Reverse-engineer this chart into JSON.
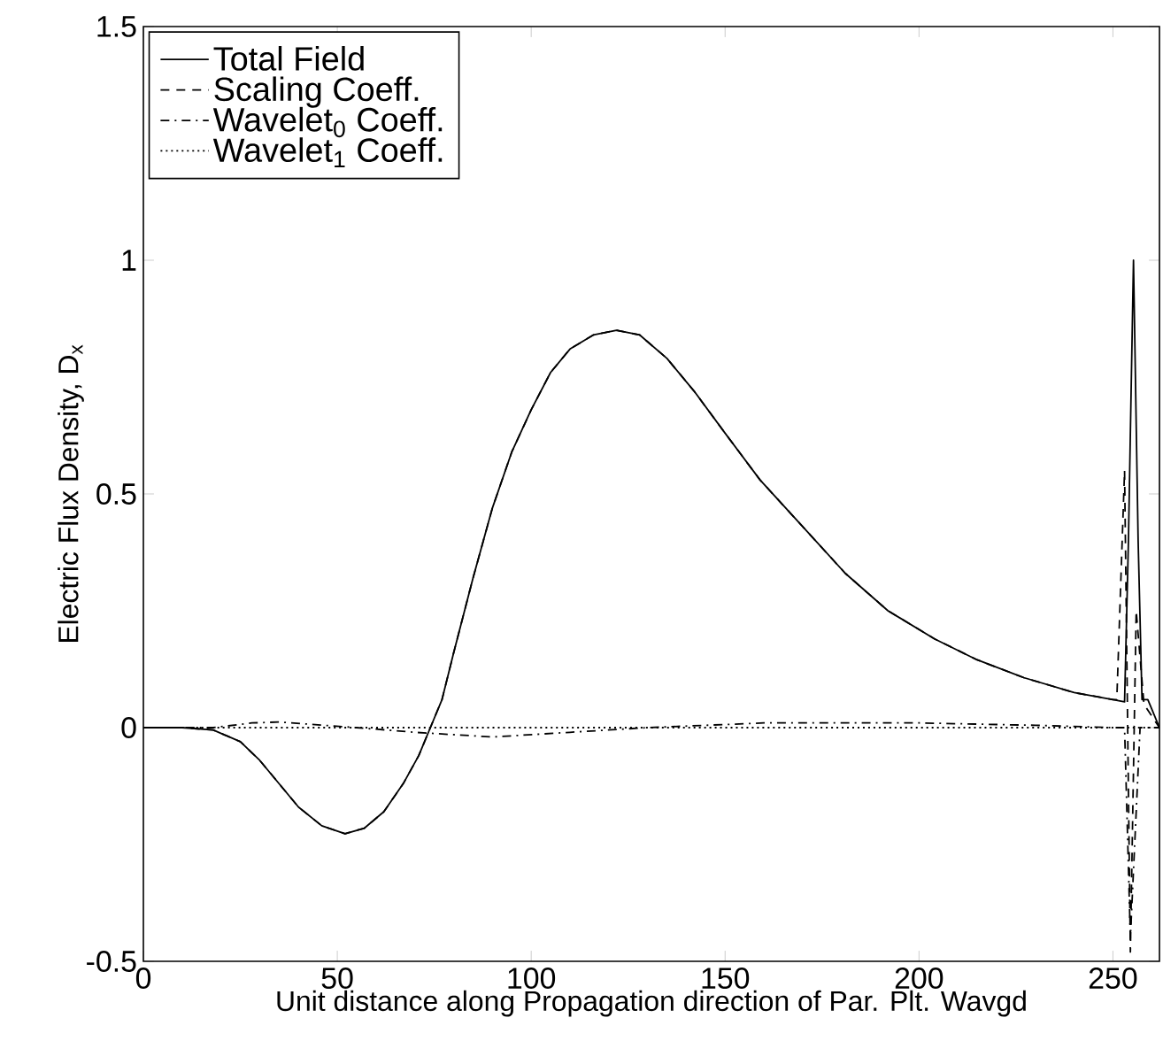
{
  "chart_data": {
    "type": "line",
    "xlabel": "Unit distance along Propagation direction of Par. Plt. Wavgd",
    "ylabel": "Electric Flux Density, D$_{x}$",
    "xlim": [
      0,
      262
    ],
    "ylim": [
      -0.5,
      1.5
    ],
    "xticks": [
      0,
      50,
      100,
      150,
      200,
      250
    ],
    "yticks": [
      -0.5,
      0,
      0.5,
      1,
      1.5
    ],
    "legend": "top left",
    "grid": false,
    "series": [
      {
        "name": "Total Field",
        "color": "#000000",
        "line_style": "solid",
        "x": [
          0,
          10,
          18,
          25,
          30,
          35,
          40,
          46,
          52,
          57,
          62,
          67,
          71,
          74,
          77,
          80,
          85,
          90,
          95,
          100,
          105,
          110,
          116,
          122,
          128,
          135,
          142,
          150,
          159,
          170,
          181,
          192,
          204,
          215,
          227,
          240,
          250,
          253,
          254,
          255.3,
          256.5,
          257.5,
          259,
          260,
          262
        ],
        "values": [
          0,
          0,
          -0.005,
          -0.03,
          -0.07,
          -0.12,
          -0.17,
          -0.21,
          -0.227,
          -0.215,
          -0.18,
          -0.12,
          -0.06,
          0,
          0.06,
          0.16,
          0.32,
          0.47,
          0.59,
          0.68,
          0.76,
          0.81,
          0.84,
          0.85,
          0.84,
          0.79,
          0.72,
          0.63,
          0.53,
          0.43,
          0.33,
          0.25,
          0.19,
          0.145,
          0.107,
          0.075,
          0.06,
          0.055,
          0.4,
          1.0,
          0.4,
          0.06,
          0.06,
          0.04,
          0
        ]
      },
      {
        "name": "Scaling Coeff.",
        "color": "#000000",
        "line_style": "dashed",
        "x": [
          0,
          10,
          18,
          25,
          30,
          35,
          40,
          46,
          52,
          57,
          62,
          67,
          71,
          74,
          77,
          80,
          85,
          90,
          95,
          100,
          105,
          110,
          116,
          122,
          128,
          135,
          142,
          150,
          159,
          170,
          181,
          192,
          204,
          215,
          227,
          240,
          250,
          251,
          253,
          254.5,
          256,
          258,
          262
        ],
        "values": [
          0,
          0,
          -0.005,
          -0.03,
          -0.07,
          -0.12,
          -0.17,
          -0.21,
          -0.227,
          -0.215,
          -0.18,
          -0.12,
          -0.06,
          0,
          0.06,
          0.16,
          0.32,
          0.47,
          0.59,
          0.68,
          0.76,
          0.81,
          0.84,
          0.85,
          0.84,
          0.79,
          0.72,
          0.63,
          0.53,
          0.43,
          0.33,
          0.25,
          0.19,
          0.145,
          0.107,
          0.075,
          0.06,
          0.06,
          0.55,
          -0.48,
          0.25,
          0.05,
          0
        ]
      },
      {
        "name": "Wavelet$_{0}$ Coeff.",
        "color": "#000000",
        "line_style": "dashdot",
        "x": [
          0,
          18,
          28,
          35,
          45,
          55,
          70,
          90,
          110,
          130,
          160,
          200,
          230,
          250,
          253,
          254.5,
          257,
          262
        ],
        "values": [
          0,
          0,
          0.01,
          0.012,
          0.006,
          0,
          -0.01,
          -0.02,
          -0.01,
          0,
          0.01,
          0.01,
          0.005,
          0,
          0,
          -0.45,
          0,
          0
        ]
      },
      {
        "name": "Wavelet$_{1}$ Coeff.",
        "color": "#000000",
        "line_style": "dotted",
        "x": [
          0,
          262
        ],
        "values": [
          0,
          0
        ]
      }
    ]
  }
}
